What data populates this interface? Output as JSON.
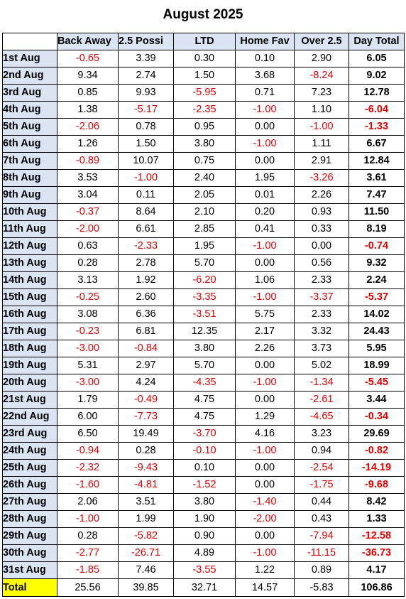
{
  "title": "August 2025",
  "columns": [
    "Back Away",
    "2.5 Possi",
    "LTD",
    "Home Fav",
    "Over 2.5",
    "Day Total"
  ],
  "rows": [
    {
      "date": "1st Aug",
      "values": [
        "-0.65",
        "3.39",
        "0.30",
        "0.10",
        "2.90",
        "6.05"
      ]
    },
    {
      "date": "2nd Aug",
      "values": [
        "9.34",
        "2.74",
        "1.50",
        "3.68",
        "-8.24",
        "9.02"
      ]
    },
    {
      "date": "3rd Aug",
      "values": [
        "0.85",
        "9.93",
        "-5.95",
        "0.71",
        "7.23",
        "12.78"
      ]
    },
    {
      "date": "4th Aug",
      "values": [
        "1.38",
        "-5.17",
        "-2.35",
        "-1.00",
        "1.10",
        "-6.04"
      ]
    },
    {
      "date": "5th Aug",
      "values": [
        "-2.06",
        "0.78",
        "0.95",
        "0.00",
        "-1.00",
        "-1.33"
      ]
    },
    {
      "date": "6th Aug",
      "values": [
        "1.26",
        "1.50",
        "3.80",
        "-1.00",
        "1.11",
        "6.67"
      ]
    },
    {
      "date": "7th Aug",
      "values": [
        "-0.89",
        "10.07",
        "0.75",
        "0.00",
        "2.91",
        "12.84"
      ]
    },
    {
      "date": "8th Aug",
      "values": [
        "3.53",
        "-1.00",
        "2.40",
        "1.95",
        "-3.26",
        "3.61"
      ]
    },
    {
      "date": "9th Aug",
      "values": [
        "3.04",
        "0.11",
        "2.05",
        "0.01",
        "2.26",
        "7.47"
      ]
    },
    {
      "date": "10th Aug",
      "values": [
        "-0.37",
        "8.64",
        "2.10",
        "0.20",
        "0.93",
        "11.50"
      ]
    },
    {
      "date": "11th Aug",
      "values": [
        "-2.00",
        "6.61",
        "2.85",
        "0.41",
        "0.33",
        "8.19"
      ]
    },
    {
      "date": "12th Aug",
      "values": [
        "0.63",
        "-2.33",
        "1.95",
        "-1.00",
        "0.00",
        "-0.74"
      ]
    },
    {
      "date": "13th Aug",
      "values": [
        "0.28",
        "2.78",
        "5.70",
        "0.00",
        "0.56",
        "9.32"
      ]
    },
    {
      "date": "14th Aug",
      "values": [
        "3.13",
        "1.92",
        "-6.20",
        "1.06",
        "2.33",
        "2.24"
      ]
    },
    {
      "date": "15th Aug",
      "values": [
        "-0.25",
        "2.60",
        "-3.35",
        "-1.00",
        "-3.37",
        "-5.37"
      ]
    },
    {
      "date": "16th Aug",
      "values": [
        "3.08",
        "6.36",
        "-3.51",
        "5.75",
        "2.33",
        "14.02"
      ]
    },
    {
      "date": "17th Aug",
      "values": [
        "-0.23",
        "6.81",
        "12.35",
        "2.17",
        "3.32",
        "24.43"
      ]
    },
    {
      "date": "18th Aug",
      "values": [
        "-3.00",
        "-0.84",
        "3.80",
        "2.26",
        "3.73",
        "5.95"
      ]
    },
    {
      "date": "19th Aug",
      "values": [
        "5.31",
        "2.97",
        "5.70",
        "0.00",
        "5.02",
        "18.99"
      ]
    },
    {
      "date": "20th Aug",
      "values": [
        "-3.00",
        "4.24",
        "-4.35",
        "-1.00",
        "-1.34",
        "-5.45"
      ]
    },
    {
      "date": "21st Aug",
      "values": [
        "1.79",
        "-0.49",
        "4.75",
        "0.00",
        "-2.61",
        "3.44"
      ]
    },
    {
      "date": "22nd Aug",
      "values": [
        "6.00",
        "-7.73",
        "4.75",
        "1.29",
        "-4.65",
        "-0.34"
      ]
    },
    {
      "date": "23rd Aug",
      "values": [
        "6.50",
        "19.49",
        "-3.70",
        "4.16",
        "3.23",
        "29.69"
      ]
    },
    {
      "date": "24th Aug",
      "values": [
        "-0.94",
        "0.28",
        "-0.10",
        "-1.00",
        "0.94",
        "-0.82"
      ]
    },
    {
      "date": "25th Aug",
      "values": [
        "-2.32",
        "-9.43",
        "0.10",
        "0.00",
        "-2.54",
        "-14.19"
      ]
    },
    {
      "date": "26th Aug",
      "values": [
        "-1.60",
        "-4.81",
        "-1.52",
        "0.00",
        "-1.75",
        "-9.68"
      ]
    },
    {
      "date": "27th Aug",
      "values": [
        "2.06",
        "3.51",
        "3.80",
        "-1.40",
        "0.44",
        "8.42"
      ]
    },
    {
      "date": "28th Aug",
      "values": [
        "-1.00",
        "1.99",
        "1.90",
        "-2.00",
        "0.43",
        "1.33"
      ]
    },
    {
      "date": "29th Aug",
      "values": [
        "0.28",
        "-5.82",
        "0.90",
        "0.00",
        "-7.94",
        "-12.58"
      ]
    },
    {
      "date": "30th Aug",
      "values": [
        "-2.77",
        "-26.71",
        "4.89",
        "-1.00",
        "-11.15",
        "-36.73"
      ]
    },
    {
      "date": "31st Aug",
      "values": [
        "-1.85",
        "7.46",
        "-3.55",
        "1.22",
        "0.89",
        "4.17"
      ]
    }
  ],
  "total": {
    "label": "Total",
    "values": [
      "25.56",
      "39.85",
      "32.71",
      "14.57",
      "-5.83",
      "106.86"
    ]
  },
  "colors": {
    "header_fill": "#dbe4f3",
    "total_label_fill": "#ffff00",
    "negative": "#e20000"
  }
}
